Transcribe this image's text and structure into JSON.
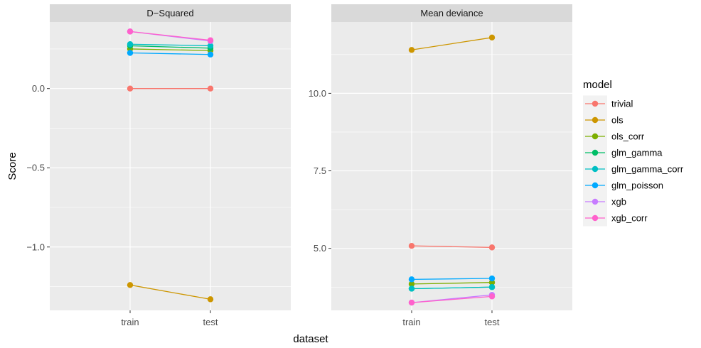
{
  "chart_data": {
    "type": "line",
    "categories": [
      "train",
      "test"
    ],
    "xlabel": "dataset",
    "ylabel": "Score",
    "legend": {
      "title": "model",
      "position": "right",
      "entries": [
        {
          "name": "trivial",
          "color": "#F8766D"
        },
        {
          "name": "ols",
          "color": "#CD9600"
        },
        {
          "name": "ols_corr",
          "color": "#7CAE00"
        },
        {
          "name": "glm_gamma",
          "color": "#00BE67"
        },
        {
          "name": "glm_gamma_corr",
          "color": "#00BFC4"
        },
        {
          "name": "glm_poisson",
          "color": "#00A9FF"
        },
        {
          "name": "xgb",
          "color": "#C77CFF"
        },
        {
          "name": "xgb_corr",
          "color": "#FF61CC"
        }
      ]
    },
    "panels": [
      {
        "title": "D−Squared",
        "ylim": [
          -1.4,
          0.42
        ],
        "yticks": [
          0.0,
          -0.5,
          -1.0
        ],
        "ytick_labels": [
          "0.0",
          "−0.5",
          "−1.0"
        ],
        "series": [
          {
            "name": "trivial",
            "values": [
              0.0,
              0.0
            ]
          },
          {
            "name": "ols",
            "values": [
              -1.24,
              -1.33
            ]
          },
          {
            "name": "ols_corr",
            "values": [
              0.25,
              0.24
            ]
          },
          {
            "name": "glm_gamma",
            "values": [
              0.27,
              0.255
            ]
          },
          {
            "name": "glm_gamma_corr",
            "values": [
              0.28,
              0.27
            ]
          },
          {
            "name": "glm_poisson",
            "values": [
              0.225,
              0.215
            ]
          },
          {
            "name": "xgb",
            "values": [
              0.36,
              0.3
            ]
          },
          {
            "name": "xgb_corr",
            "values": [
              0.36,
              0.305
            ]
          }
        ]
      },
      {
        "title": "Mean deviance",
        "ylim": [
          3.0,
          12.3
        ],
        "yticks": [
          10.0,
          7.5,
          5.0
        ],
        "ytick_labels": [
          "10.0",
          "7.5",
          "5.0"
        ],
        "series": [
          {
            "name": "trivial",
            "values": [
              5.08,
              5.03
            ]
          },
          {
            "name": "ols",
            "values": [
              11.4,
              11.8
            ]
          },
          {
            "name": "ols_corr",
            "values": [
              3.85,
              3.9
            ]
          },
          {
            "name": "glm_gamma",
            "values": [
              3.7,
              3.75
            ]
          },
          {
            "name": "glm_gamma_corr",
            "values": [
              3.7,
              3.75
            ]
          },
          {
            "name": "glm_poisson",
            "values": [
              4.0,
              4.03
            ]
          },
          {
            "name": "xgb",
            "values": [
              3.25,
              3.5
            ]
          },
          {
            "name": "xgb_corr",
            "values": [
              3.25,
              3.45
            ]
          }
        ]
      }
    ]
  }
}
